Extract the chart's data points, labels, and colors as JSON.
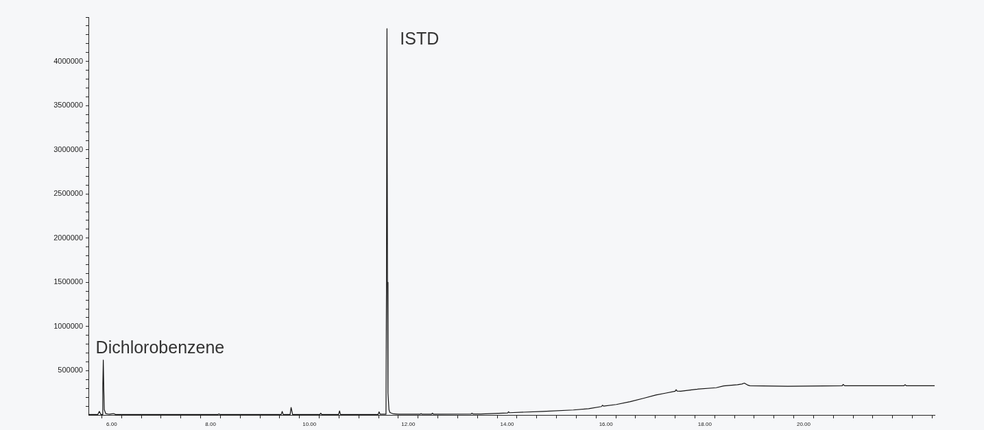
{
  "chart_data": {
    "type": "line",
    "color": "#111111",
    "marker": "none",
    "line_style": "solid",
    "x": [
      5.53,
      5.72,
      5.75,
      5.78,
      5.81,
      5.82,
      5.83,
      5.84,
      5.85,
      5.88,
      5.95,
      6.04,
      6.08,
      7.0,
      8.15,
      8.17,
      8.19,
      9.0,
      9.43,
      9.45,
      9.47,
      9.61,
      9.63,
      9.66,
      9.8,
      10.21,
      10.23,
      10.25,
      10.59,
      10.61,
      10.63,
      11.39,
      11.41,
      11.43,
      11.55,
      11.56,
      11.57,
      11.58,
      11.59,
      11.61,
      11.63,
      11.7,
      11.8,
      12.24,
      12.26,
      12.28,
      12.47,
      12.49,
      12.51,
      13.27,
      13.29,
      13.31,
      13.47,
      14.01,
      14.03,
      14.05,
      14.72,
      15.34,
      15.65,
      15.91,
      15.93,
      15.95,
      16.21,
      16.49,
      16.77,
      17.01,
      17.2,
      17.4,
      17.42,
      17.44,
      17.51,
      17.82,
      18.23,
      18.38,
      18.66,
      18.75,
      18.8,
      18.86,
      18.91,
      19.68,
      20.78,
      20.8,
      20.83,
      22.03,
      22.05,
      22.08,
      22.65
    ],
    "values": [
      5000,
      5000,
      40000,
      5000,
      5000,
      300000,
      620000,
      300000,
      60000,
      15000,
      8000,
      15000,
      5000,
      5000,
      5000,
      12000,
      5000,
      5000,
      5000,
      40000,
      5000,
      5000,
      85000,
      5000,
      5000,
      5000,
      20000,
      5000,
      5000,
      45000,
      5000,
      5000,
      35000,
      8000,
      8000,
      1500000,
      4370000,
      1500000,
      250000,
      60000,
      27000,
      12000,
      8000,
      8000,
      15000,
      8000,
      8000,
      20000,
      8000,
      10000,
      20000,
      10000,
      10000,
      22000,
      35000,
      25000,
      40000,
      56000,
      70000,
      95000,
      110000,
      100000,
      118000,
      150000,
      190000,
      225000,
      246000,
      268000,
      285000,
      270000,
      268000,
      290000,
      308000,
      328000,
      342000,
      350000,
      360000,
      340000,
      330000,
      325000,
      330000,
      345000,
      330000,
      330000,
      342000,
      330000,
      330000
    ],
    "xlim": [
      5.53,
      22.65
    ],
    "xticks": [
      {
        "value": 5.8,
        "label": null
      },
      {
        "value": 6,
        "label": "6.00"
      },
      {
        "value": 6.2,
        "label": null
      },
      {
        "value": 6.6,
        "label": null
      },
      {
        "value": 7.0,
        "label": null
      },
      {
        "value": 7.4,
        "label": null
      },
      {
        "value": 7.8,
        "label": null
      },
      {
        "value": 8,
        "label": "8.00"
      },
      {
        "value": 8.2,
        "label": null
      },
      {
        "value": 8.6,
        "label": null
      },
      {
        "value": 9.0,
        "label": null
      },
      {
        "value": 9.4,
        "label": null
      },
      {
        "value": 9.8,
        "label": null
      },
      {
        "value": 10,
        "label": "10.00"
      },
      {
        "value": 10.2,
        "label": null
      },
      {
        "value": 10.6,
        "label": null
      },
      {
        "value": 11.0,
        "label": null
      },
      {
        "value": 11.4,
        "label": null
      },
      {
        "value": 11.8,
        "label": null
      },
      {
        "value": 12,
        "label": "12.00"
      },
      {
        "value": 12.2,
        "label": null
      },
      {
        "value": 12.6,
        "label": null
      },
      {
        "value": 13.0,
        "label": null
      },
      {
        "value": 13.4,
        "label": null
      },
      {
        "value": 13.8,
        "label": null
      },
      {
        "value": 14,
        "label": "14.00"
      },
      {
        "value": 14.2,
        "label": null
      },
      {
        "value": 14.6,
        "label": null
      },
      {
        "value": 15.0,
        "label": null
      },
      {
        "value": 15.4,
        "label": null
      },
      {
        "value": 15.8,
        "label": null
      },
      {
        "value": 16,
        "label": "16.00"
      },
      {
        "value": 16.2,
        "label": null
      },
      {
        "value": 16.6,
        "label": null
      },
      {
        "value": 17.0,
        "label": null
      },
      {
        "value": 17.4,
        "label": null
      },
      {
        "value": 17.8,
        "label": null
      },
      {
        "value": 18,
        "label": "18.00"
      },
      {
        "value": 18.2,
        "label": null
      },
      {
        "value": 18.6,
        "label": null
      },
      {
        "value": 19.0,
        "label": null
      },
      {
        "value": 19.4,
        "label": null
      },
      {
        "value": 19.8,
        "label": null
      },
      {
        "value": 20,
        "label": "20.00"
      },
      {
        "value": 20.2,
        "label": null
      },
      {
        "value": 20.6,
        "label": null
      },
      {
        "value": 21.0,
        "label": null
      },
      {
        "value": 21.4,
        "label": null
      },
      {
        "value": 21.8,
        "label": null
      },
      {
        "value": 22.2,
        "label": null
      },
      {
        "value": 22.6,
        "label": null
      }
    ],
    "ylim": [
      0,
      4500000
    ],
    "yticks": [
      {
        "value": 100000,
        "label": null
      },
      {
        "value": 200000,
        "label": null
      },
      {
        "value": 300000,
        "label": null
      },
      {
        "value": 400000,
        "label": null
      },
      500000,
      {
        "value": 600000,
        "label": null
      },
      {
        "value": 700000,
        "label": null
      },
      {
        "value": 800000,
        "label": null
      },
      {
        "value": 900000,
        "label": null
      },
      1000000,
      {
        "value": 1100000,
        "label": null
      },
      {
        "value": 1200000,
        "label": null
      },
      {
        "value": 1300000,
        "label": null
      },
      {
        "value": 1400000,
        "label": null
      },
      1500000,
      {
        "value": 1600000,
        "label": null
      },
      {
        "value": 1700000,
        "label": null
      },
      {
        "value": 1800000,
        "label": null
      },
      {
        "value": 1900000,
        "label": null
      },
      2000000,
      {
        "value": 2100000,
        "label": null
      },
      {
        "value": 2200000,
        "label": null
      },
      {
        "value": 2300000,
        "label": null
      },
      {
        "value": 2400000,
        "label": null
      },
      2500000,
      {
        "value": 2600000,
        "label": null
      },
      {
        "value": 2700000,
        "label": null
      },
      {
        "value": 2800000,
        "label": null
      },
      {
        "value": 2900000,
        "label": null
      },
      3000000,
      {
        "value": 3100000,
        "label": null
      },
      {
        "value": 3200000,
        "label": null
      },
      {
        "value": 3300000,
        "label": null
      },
      {
        "value": 3400000,
        "label": null
      },
      3500000,
      {
        "value": 3600000,
        "label": null
      },
      {
        "value": 3700000,
        "label": null
      },
      {
        "value": 3800000,
        "label": null
      },
      {
        "value": 3900000,
        "label": null
      },
      4000000,
      {
        "value": 4100000,
        "label": null
      },
      {
        "value": 4200000,
        "label": null
      },
      {
        "value": 4300000,
        "label": null
      },
      {
        "value": 4400000,
        "label": null
      },
      {
        "value": 4500000,
        "label": null
      }
    ],
    "annotations": [
      {
        "text": "Dichlorobenzene",
        "x": 5.83,
        "y": 620000
      },
      {
        "text": "ISTD",
        "x": 11.57,
        "y": 4370000
      }
    ]
  }
}
